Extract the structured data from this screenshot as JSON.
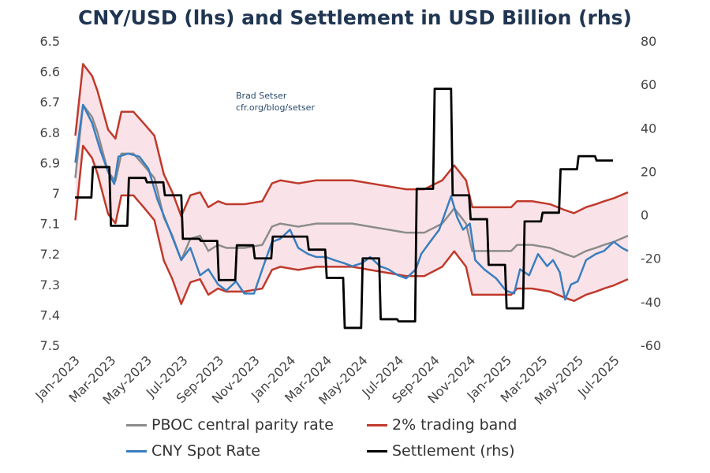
{
  "chart_data": {
    "type": "line",
    "title": "CNY/USD (lhs) and Settlement in USD Billion (rhs)",
    "annotation": [
      "Brad Setser",
      "cfr.org/blog/setser"
    ],
    "y_left": {
      "range": [
        6.5,
        7.5
      ],
      "inverted": true,
      "ticks": [
        "6.5",
        "6.6",
        "6.7",
        "6.8",
        "6.9",
        "7",
        "7.1",
        "7.2",
        "7.3",
        "7.4",
        "7.5"
      ]
    },
    "y_right": {
      "range": [
        -60,
        80
      ],
      "ticks": [
        "80",
        "60",
        "40",
        "20",
        "0",
        "-20",
        "-40",
        "-60"
      ]
    },
    "x_ticks": [
      "Jan-2023",
      "Mar-2023",
      "May-2023",
      "Jul-2023",
      "Sep-2023",
      "Nov-2023",
      "Jan-2024",
      "Mar-2024",
      "May-2024",
      "Jul-2024",
      "Sep-2024",
      "Nov-2024",
      "Jan-2025",
      "Mar-2025",
      "May-2025",
      "Jul-2025"
    ],
    "grid": false,
    "legend_position": "bottom",
    "band_pct": 2,
    "series": [
      {
        "name": "PBOC central parity rate",
        "axis": "left",
        "color": "#8c8c8c",
        "points": [
          [
            "2023-01-03",
            6.95
          ],
          [
            "2023-01-16",
            6.71
          ],
          [
            "2023-02-01",
            6.75
          ],
          [
            "2023-02-10",
            6.8
          ],
          [
            "2023-02-28",
            6.93
          ],
          [
            "2023-03-10",
            6.96
          ],
          [
            "2023-03-20",
            6.87
          ],
          [
            "2023-04-10",
            6.87
          ],
          [
            "2023-04-28",
            6.91
          ],
          [
            "2023-05-15",
            6.95
          ],
          [
            "2023-05-31",
            7.08
          ],
          [
            "2023-06-15",
            7.14
          ],
          [
            "2023-06-30",
            7.22
          ],
          [
            "2023-07-15",
            7.15
          ],
          [
            "2023-08-01",
            7.14
          ],
          [
            "2023-08-15",
            7.19
          ],
          [
            "2023-09-01",
            7.17
          ],
          [
            "2023-09-15",
            7.18
          ],
          [
            "2023-10-15",
            7.18
          ],
          [
            "2023-11-15",
            7.17
          ],
          [
            "2023-12-01",
            7.11
          ],
          [
            "2023-12-15",
            7.1
          ],
          [
            "2024-01-15",
            7.11
          ],
          [
            "2024-02-15",
            7.1
          ],
          [
            "2024-03-15",
            7.1
          ],
          [
            "2024-04-15",
            7.1
          ],
          [
            "2024-05-15",
            7.11
          ],
          [
            "2024-06-15",
            7.12
          ],
          [
            "2024-07-15",
            7.13
          ],
          [
            "2024-08-15",
            7.13
          ],
          [
            "2024-09-15",
            7.1
          ],
          [
            "2024-10-05",
            7.05
          ],
          [
            "2024-10-25",
            7.1
          ],
          [
            "2024-11-05",
            7.19
          ],
          [
            "2024-12-15",
            7.19
          ],
          [
            "2025-01-10",
            7.19
          ],
          [
            "2025-01-20",
            7.17
          ],
          [
            "2025-02-15",
            7.17
          ],
          [
            "2025-03-15",
            7.18
          ],
          [
            "2025-04-10",
            7.2
          ],
          [
            "2025-04-25",
            7.21
          ],
          [
            "2025-05-15",
            7.19
          ],
          [
            "2025-06-01",
            7.18
          ],
          [
            "2025-06-15",
            7.17
          ],
          [
            "2025-07-01",
            7.16
          ],
          [
            "2025-07-25",
            7.14
          ]
        ]
      },
      {
        "name": "2% trading band",
        "axis": "left",
        "color": "#c0392b"
      },
      {
        "name": "CNY Spot Rate",
        "axis": "left",
        "color": "#3a7ebf",
        "points": [
          [
            "2023-01-03",
            6.9
          ],
          [
            "2023-01-16",
            6.71
          ],
          [
            "2023-02-01",
            6.77
          ],
          [
            "2023-02-15",
            6.86
          ],
          [
            "2023-02-28",
            6.93
          ],
          [
            "2023-03-08",
            6.97
          ],
          [
            "2023-03-15",
            6.88
          ],
          [
            "2023-04-01",
            6.87
          ],
          [
            "2023-04-20",
            6.88
          ],
          [
            "2023-05-05",
            6.92
          ],
          [
            "2023-05-20",
            7.02
          ],
          [
            "2023-06-10",
            7.12
          ],
          [
            "2023-06-30",
            7.22
          ],
          [
            "2023-07-15",
            7.18
          ],
          [
            "2023-08-01",
            7.27
          ],
          [
            "2023-08-15",
            7.25
          ],
          [
            "2023-09-01",
            7.3
          ],
          [
            "2023-09-15",
            7.32
          ],
          [
            "2023-10-01",
            7.29
          ],
          [
            "2023-10-15",
            7.33
          ],
          [
            "2023-11-01",
            7.33
          ],
          [
            "2023-11-15",
            7.25
          ],
          [
            "2023-12-01",
            7.16
          ],
          [
            "2023-12-15",
            7.15
          ],
          [
            "2024-01-01",
            7.12
          ],
          [
            "2024-01-15",
            7.18
          ],
          [
            "2024-02-01",
            7.2
          ],
          [
            "2024-02-15",
            7.21
          ],
          [
            "2024-03-01",
            7.21
          ],
          [
            "2024-03-15",
            7.22
          ],
          [
            "2024-04-01",
            7.23
          ],
          [
            "2024-04-15",
            7.24
          ],
          [
            "2024-05-01",
            7.23
          ],
          [
            "2024-05-15",
            7.21
          ],
          [
            "2024-06-01",
            7.24
          ],
          [
            "2024-06-15",
            7.25
          ],
          [
            "2024-07-01",
            7.27
          ],
          [
            "2024-07-15",
            7.28
          ],
          [
            "2024-08-01",
            7.25
          ],
          [
            "2024-08-10",
            7.2
          ],
          [
            "2024-08-25",
            7.16
          ],
          [
            "2024-09-10",
            7.12
          ],
          [
            "2024-09-30",
            7.01
          ],
          [
            "2024-10-10",
            7.08
          ],
          [
            "2024-10-20",
            7.12
          ],
          [
            "2024-11-01",
            7.1
          ],
          [
            "2024-11-10",
            7.22
          ],
          [
            "2024-11-25",
            7.25
          ],
          [
            "2024-12-15",
            7.28
          ],
          [
            "2025-01-01",
            7.32
          ],
          [
            "2025-01-15",
            7.33
          ],
          [
            "2025-01-25",
            7.25
          ],
          [
            "2025-02-10",
            7.27
          ],
          [
            "2025-02-25",
            7.2
          ],
          [
            "2025-03-10",
            7.24
          ],
          [
            "2025-03-20",
            7.22
          ],
          [
            "2025-04-01",
            7.26
          ],
          [
            "2025-04-10",
            7.35
          ],
          [
            "2025-04-20",
            7.3
          ],
          [
            "2025-05-01",
            7.29
          ],
          [
            "2025-05-15",
            7.22
          ],
          [
            "2025-06-01",
            7.2
          ],
          [
            "2025-06-15",
            7.19
          ],
          [
            "2025-07-01",
            7.16
          ],
          [
            "2025-07-15",
            7.18
          ],
          [
            "2025-07-25",
            7.19
          ]
        ]
      },
      {
        "name": "Settlement (rhs)",
        "axis": "right",
        "color": "#000000",
        "step": "monthly",
        "months": [
          "2023-01",
          "2023-02",
          "2023-03",
          "2023-04",
          "2023-05",
          "2023-06",
          "2023-07",
          "2023-08",
          "2023-09",
          "2023-10",
          "2023-11",
          "2023-12",
          "2024-01",
          "2024-02",
          "2024-03",
          "2024-04",
          "2024-05",
          "2024-06",
          "2024-07",
          "2024-08",
          "2024-09",
          "2024-10",
          "2024-11",
          "2024-12",
          "2025-01",
          "2025-02",
          "2025-03",
          "2025-04",
          "2025-05",
          "2025-06"
        ],
        "values": [
          8,
          22,
          -5,
          17,
          15,
          9,
          -11,
          -12,
          -30,
          -14,
          -20,
          -10,
          -10,
          -16,
          -29,
          -52,
          -20,
          -48,
          -49,
          12,
          58,
          9,
          -2,
          -23,
          -43,
          -3,
          1,
          21,
          27,
          25
        ]
      }
    ],
    "band_fill_color": "#f9e3e8"
  }
}
